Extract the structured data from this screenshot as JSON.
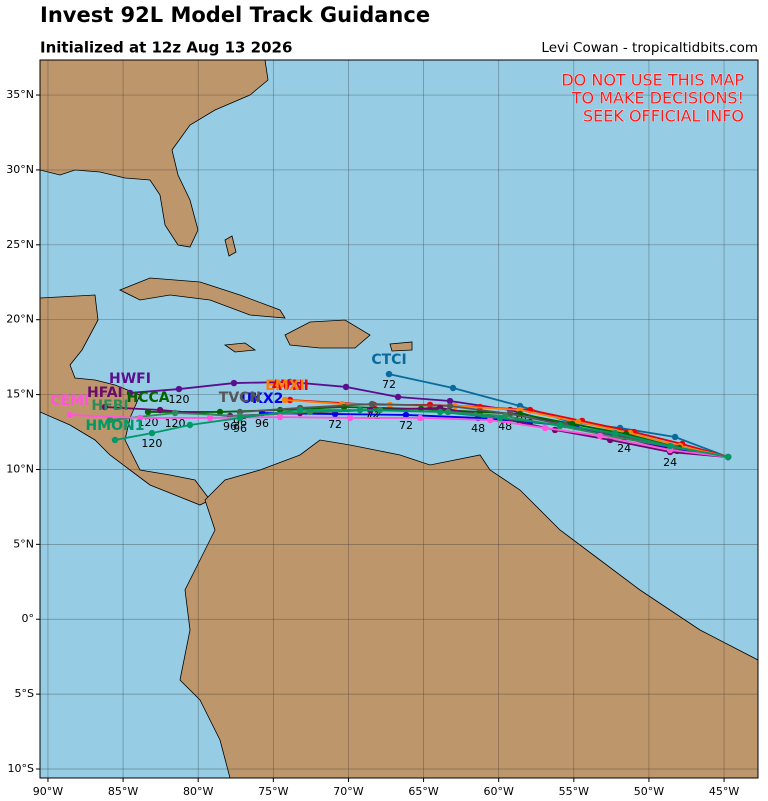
{
  "chart_data": {
    "type": "track_map",
    "title": "Invest 92L Model Track Guidance",
    "subtitle": "Initialized at 12z Aug 13 2026",
    "credit": "Levi Cowan - tropicaltidbits.com",
    "warning": [
      "DO NOT USE THIS MAP",
      "TO MAKE DECISIONS!",
      "SEEK OFFICIAL INFO"
    ],
    "xlim": [
      -90.53,
      -42.74
    ],
    "ylim": [
      -10.6,
      37.34
    ],
    "grid": true,
    "xticks": [
      {
        "value": -90,
        "label": "90°W"
      },
      {
        "value": -85,
        "label": "85°W"
      },
      {
        "value": -80,
        "label": "80°W"
      },
      {
        "value": -75,
        "label": "75°W"
      },
      {
        "value": -70,
        "label": "70°W"
      },
      {
        "value": -65,
        "label": "65°W"
      },
      {
        "value": -60,
        "label": "60°W"
      },
      {
        "value": -55,
        "label": "55°W"
      },
      {
        "value": -50,
        "label": "50°W"
      },
      {
        "value": -45,
        "label": "45°W"
      }
    ],
    "yticks": [
      {
        "value": 35,
        "label": "35°N"
      },
      {
        "value": 30,
        "label": "30°N"
      },
      {
        "value": 25,
        "label": "25°N"
      },
      {
        "value": 20,
        "label": "20°N"
      },
      {
        "value": 15,
        "label": "15°N"
      },
      {
        "value": 10,
        "label": "10°N"
      },
      {
        "value": 5,
        "label": "5°N"
      },
      {
        "value": 0,
        "label": "0°"
      },
      {
        "value": -5,
        "label": "5°S"
      },
      {
        "value": -10,
        "label": "10°S"
      }
    ],
    "series": [
      {
        "name": "CTCI",
        "color": "#0a6a9c",
        "lon": [
          -44.73,
          -48.26,
          -51.92,
          -55.25,
          -58.58,
          -63.04,
          -67.3
        ],
        "lat": [
          10.83,
          12.17,
          12.77,
          13.17,
          14.24,
          15.44,
          16.37
        ],
        "hours": [
          null,
          null,
          null,
          null,
          null,
          null,
          "72"
        ]
      },
      {
        "name": "HWFI",
        "color": "#5b0f8e",
        "lon": [
          -44.73,
          -48.12,
          -52.12,
          -55.91,
          -59.24,
          -63.24,
          -66.7,
          -70.16,
          -73.89,
          -77.62,
          -81.28,
          -84.54
        ],
        "lat": [
          10.83,
          11.24,
          12.24,
          13.04,
          13.97,
          14.57,
          14.84,
          15.51,
          15.84,
          15.77,
          15.37,
          15.11
        ],
        "hours": [
          null,
          null,
          null,
          null,
          null,
          null,
          null,
          null,
          null,
          null,
          "120",
          null
        ]
      },
      {
        "name": "AVNI",
        "color": "#e8000b",
        "lon": [
          -44.73,
          -47.79,
          -50.99,
          -54.45,
          -57.91,
          -61.24,
          -64.57,
          -68.3,
          -73.89
        ],
        "lat": [
          10.83,
          11.7,
          12.5,
          13.24,
          13.97,
          14.17,
          14.31,
          14.31,
          14.64
        ],
        "hours": [
          null,
          null,
          null,
          null,
          null,
          null,
          null,
          "72",
          null
        ]
      },
      {
        "name": "EMXI",
        "color": "#ff7f0e",
        "lon": [
          -44.73,
          -47.92,
          -51.25,
          -54.71,
          -58.58,
          -62.9,
          -67.24,
          -70.43,
          -74.22
        ],
        "lat": [
          10.83,
          11.57,
          12.43,
          13.17,
          13.97,
          14.24,
          14.31,
          14.37,
          14.64
        ],
        "hours": [
          null,
          null,
          null,
          null,
          "48",
          null,
          null,
          null,
          null
        ]
      },
      {
        "name": "UKX2",
        "color": "#0000ee",
        "lon": [
          -44.73,
          -48.12,
          -51.65,
          -54.85,
          -57.91,
          -61.37,
          -66.17,
          -70.89,
          -75.75
        ],
        "lat": [
          10.83,
          11.37,
          12.1,
          12.84,
          13.17,
          13.44,
          13.64,
          13.7,
          13.77
        ],
        "hours": [
          null,
          null,
          "24",
          null,
          null,
          "48",
          "72",
          "72",
          "96"
        ]
      },
      {
        "name": "HCCA",
        "color": "#006400",
        "lon": [
          -44.73,
          -47.99,
          -51.52,
          -55.11,
          -58.58,
          -61.24,
          -65.17,
          -70.29,
          -74.55,
          -78.55,
          -83.34
        ],
        "lat": [
          10.83,
          11.44,
          12.37,
          13.04,
          13.71,
          13.84,
          14.04,
          14.17,
          13.97,
          13.84,
          13.84
        ],
        "hours": [
          null,
          null,
          null,
          null,
          null,
          null,
          null,
          null,
          null,
          null,
          "120"
        ]
      },
      {
        "name": "TVCN",
        "color": "#555555",
        "lon": [
          -44.73,
          -48.19,
          -51.92,
          -55.58,
          -59.24,
          -63.24,
          -68.43,
          -73.22,
          -77.22
        ],
        "lat": [
          10.83,
          11.44,
          12.24,
          12.97,
          13.71,
          14.24,
          14.37,
          14.11,
          13.84
        ],
        "hours": [
          null,
          null,
          null,
          null,
          null,
          null,
          "72",
          null,
          "96"
        ]
      },
      {
        "name": "HFAI",
        "color": "#6a0a6a",
        "lon": [
          -44.73,
          -48.59,
          -52.58,
          -56.25,
          -59.91,
          -63.9,
          -68.56,
          -73.22,
          -77.88,
          -82.54,
          -86.21
        ],
        "lat": [
          10.83,
          11.17,
          11.97,
          12.64,
          13.44,
          14.11,
          13.97,
          13.77,
          13.57,
          13.97,
          14.17
        ],
        "hours": [
          null,
          "24",
          null,
          null,
          null,
          null,
          null,
          null,
          "96",
          null,
          null
        ]
      },
      {
        "name": "HFBI",
        "color": "#2e8b57",
        "lon": [
          -44.73,
          -48.46,
          -52.25,
          -55.91,
          -59.57,
          -63.37,
          -67.9,
          -72.56,
          -77.22,
          -81.54,
          -85.87
        ],
        "lat": [
          10.83,
          11.5,
          12.17,
          12.9,
          13.57,
          13.84,
          13.97,
          13.84,
          13.57,
          13.77,
          13.3
        ],
        "hours": [
          null,
          null,
          null,
          null,
          "48",
          null,
          null,
          null,
          null,
          "120",
          null
        ]
      },
      {
        "name": "CEMI",
        "color": "#ff55dd",
        "lon": [
          -44.73,
          -48.59,
          -53.25,
          -56.91,
          -60.57,
          -65.23,
          -69.89,
          -74.55,
          -79.21,
          -83.87,
          -88.54
        ],
        "lat": [
          10.83,
          11.3,
          12.24,
          12.77,
          13.3,
          13.44,
          13.44,
          13.5,
          13.44,
          13.44,
          13.64
        ],
        "hours": [
          null,
          null,
          null,
          null,
          null,
          null,
          null,
          null,
          null,
          null,
          null
        ]
      },
      {
        "name": "HMON1",
        "color": "#009966",
        "lon": [
          -44.73,
          -48.59,
          -52.25,
          -55.91,
          -59.91,
          -63.9,
          -69.23,
          -73.22,
          -77.22,
          -80.55,
          -83.08,
          -85.54
        ],
        "lat": [
          10.83,
          11.57,
          12.43,
          12.97,
          13.44,
          13.84,
          13.97,
          13.97,
          13.44,
          12.97,
          12.43,
          11.97
        ],
        "hours": [
          null,
          null,
          null,
          null,
          null,
          null,
          null,
          null,
          "96",
          null,
          "120",
          null
        ]
      }
    ]
  }
}
